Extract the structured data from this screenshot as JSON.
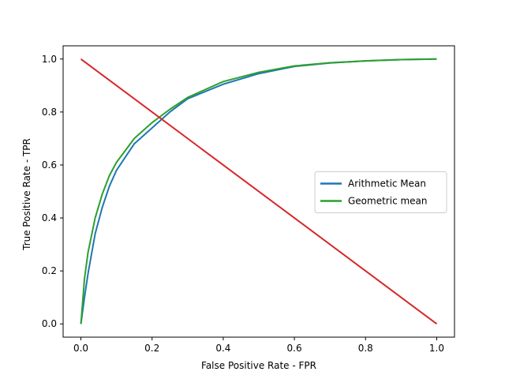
{
  "chart_data": {
    "type": "line",
    "title": "",
    "xlabel": "False Positive Rate - FPR",
    "ylabel": "True Positive Rate - TPR",
    "xlim": [
      -0.05,
      1.05
    ],
    "ylim": [
      -0.05,
      1.05
    ],
    "xticks": [
      "0.0",
      "0.2",
      "0.4",
      "0.6",
      "0.8",
      "1.0"
    ],
    "yticks": [
      "0.0",
      "0.2",
      "0.4",
      "0.6",
      "0.8",
      "1.0"
    ],
    "grid": false,
    "legend_position": "center-right",
    "series": [
      {
        "name": "Arithmetic Mean",
        "color": "#1f77b4",
        "x": [
          0.0,
          0.01,
          0.02,
          0.04,
          0.06,
          0.08,
          0.1,
          0.15,
          0.2,
          0.25,
          0.3,
          0.4,
          0.5,
          0.6,
          0.7,
          0.8,
          0.9,
          1.0
        ],
        "y": [
          0.0,
          0.1,
          0.19,
          0.34,
          0.44,
          0.52,
          0.58,
          0.68,
          0.74,
          0.8,
          0.85,
          0.905,
          0.945,
          0.972,
          0.985,
          0.993,
          0.998,
          1.0
        ]
      },
      {
        "name": "Geometric mean",
        "color": "#2ca02c",
        "x": [
          0.0,
          0.01,
          0.02,
          0.04,
          0.06,
          0.08,
          0.1,
          0.15,
          0.2,
          0.25,
          0.3,
          0.4,
          0.5,
          0.6,
          0.7,
          0.8,
          0.9,
          1.0
        ],
        "y": [
          0.0,
          0.17,
          0.27,
          0.4,
          0.49,
          0.56,
          0.61,
          0.7,
          0.76,
          0.81,
          0.855,
          0.915,
          0.95,
          0.974,
          0.986,
          0.993,
          0.998,
          1.0
        ]
      },
      {
        "name": "",
        "color": "#d62728",
        "x": [
          0.0,
          1.0
        ],
        "y": [
          1.0,
          0.0
        ]
      }
    ]
  }
}
